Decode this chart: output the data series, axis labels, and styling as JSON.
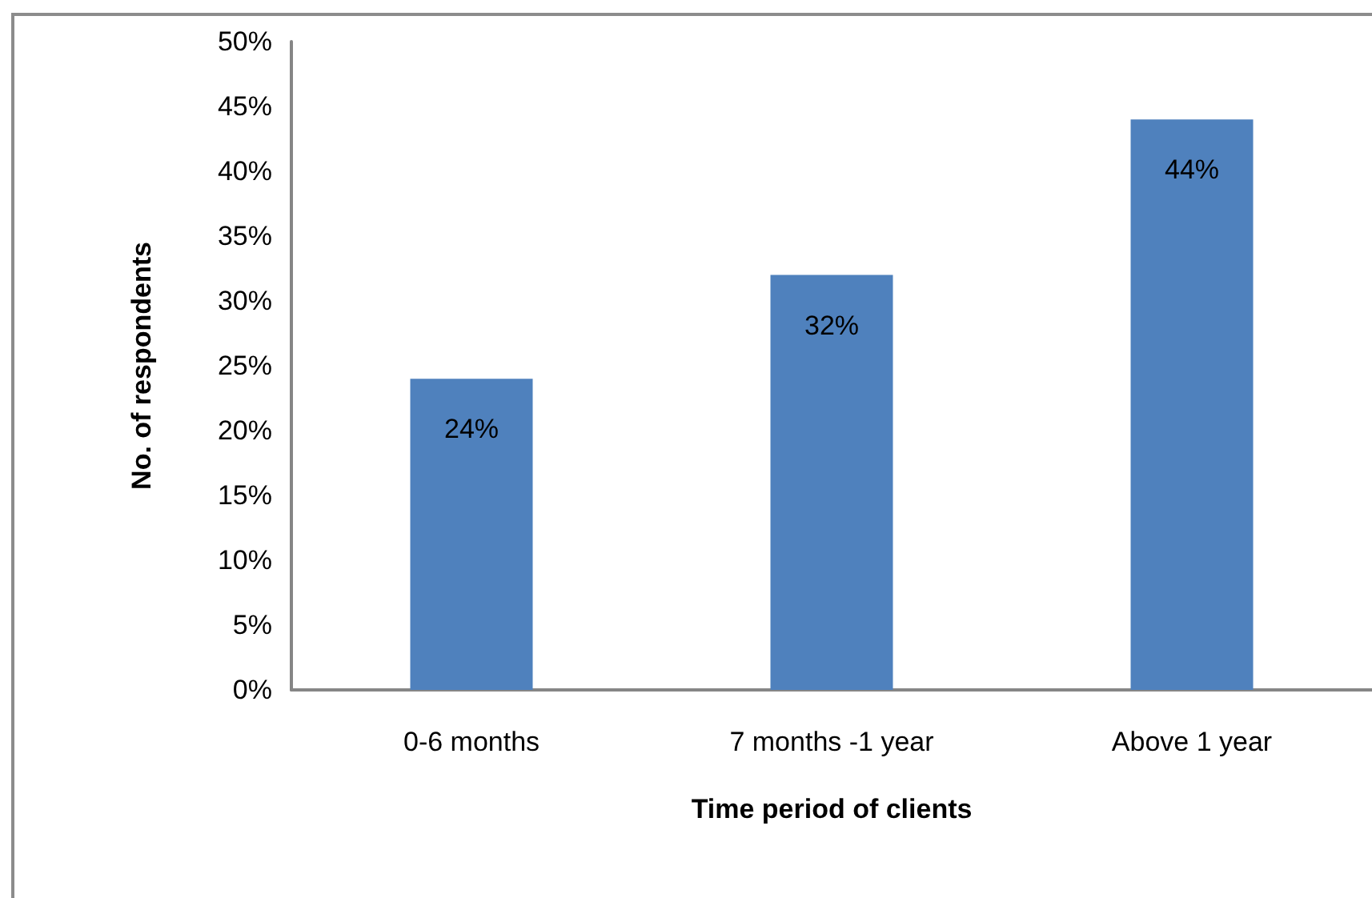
{
  "chart_data": {
    "type": "bar",
    "xlabel": "Time period of clients",
    "ylabel": "No. of respondents",
    "categories": [
      "0-6 months",
      "7 months -1 year",
      "Above 1 year"
    ],
    "values": [
      24,
      32,
      44
    ],
    "color": "#4f81bd",
    "value_labels": [
      "24%",
      "32%",
      "44%"
    ],
    "ylim": [
      0,
      50
    ],
    "yticks": [
      {
        "value": 0,
        "label": "0%"
      },
      {
        "value": 5,
        "label": "5%"
      },
      {
        "value": 10,
        "label": "10%"
      },
      {
        "value": 15,
        "label": "15%"
      },
      {
        "value": 20,
        "label": "20%"
      },
      {
        "value": 25,
        "label": "25%"
      },
      {
        "value": 30,
        "label": "30%"
      },
      {
        "value": 35,
        "label": "35%"
      },
      {
        "value": 40,
        "label": "40%"
      },
      {
        "value": 45,
        "label": "45%"
      },
      {
        "value": 50,
        "label": "50%"
      }
    ]
  }
}
